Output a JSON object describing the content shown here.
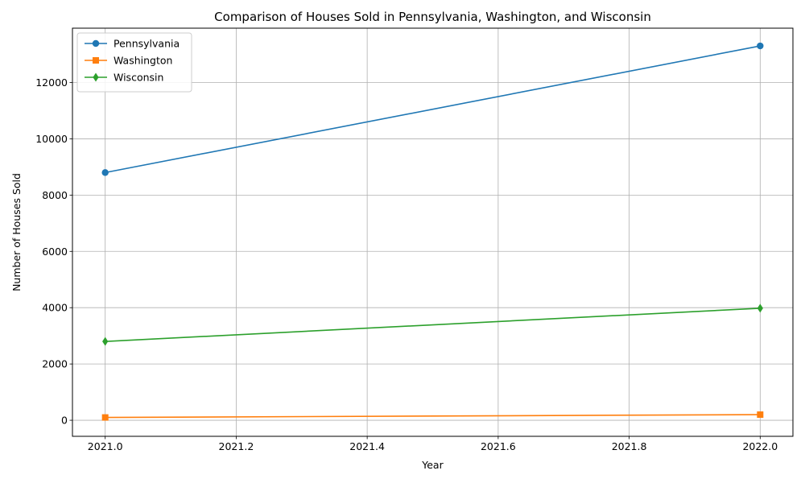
{
  "chart_data": {
    "type": "line",
    "title": "Comparison of Houses Sold in Pennsylvania, Washington, and Wisconsin",
    "xlabel": "Year",
    "ylabel": "Number of Houses Sold",
    "xlim": [
      2020.95,
      2022.05
    ],
    "ylim": [
      -570,
      13930
    ],
    "x_ticks": [
      2021.0,
      2021.2,
      2021.4,
      2021.6,
      2021.8,
      2022.0
    ],
    "x_tick_labels": [
      "2021.0",
      "2021.2",
      "2021.4",
      "2021.6",
      "2021.8",
      "2022.0"
    ],
    "y_ticks": [
      0,
      2000,
      4000,
      6000,
      8000,
      10000,
      12000
    ],
    "y_tick_labels": [
      "0",
      "2000",
      "4000",
      "6000",
      "8000",
      "10000",
      "12000"
    ],
    "grid": true,
    "legend_position": "top-left",
    "series": [
      {
        "name": "Pennsylvania",
        "color": "#1f77b4",
        "marker": "circle",
        "x": [
          2021,
          2022
        ],
        "y": [
          8800,
          13300
        ]
      },
      {
        "name": "Washington",
        "color": "#ff7f0e",
        "marker": "square",
        "x": [
          2021,
          2022
        ],
        "y": [
          100,
          200
        ]
      },
      {
        "name": "Wisconsin",
        "color": "#2ca02c",
        "marker": "diamond",
        "x": [
          2021,
          2022
        ],
        "y": [
          2800,
          3980
        ]
      }
    ]
  }
}
